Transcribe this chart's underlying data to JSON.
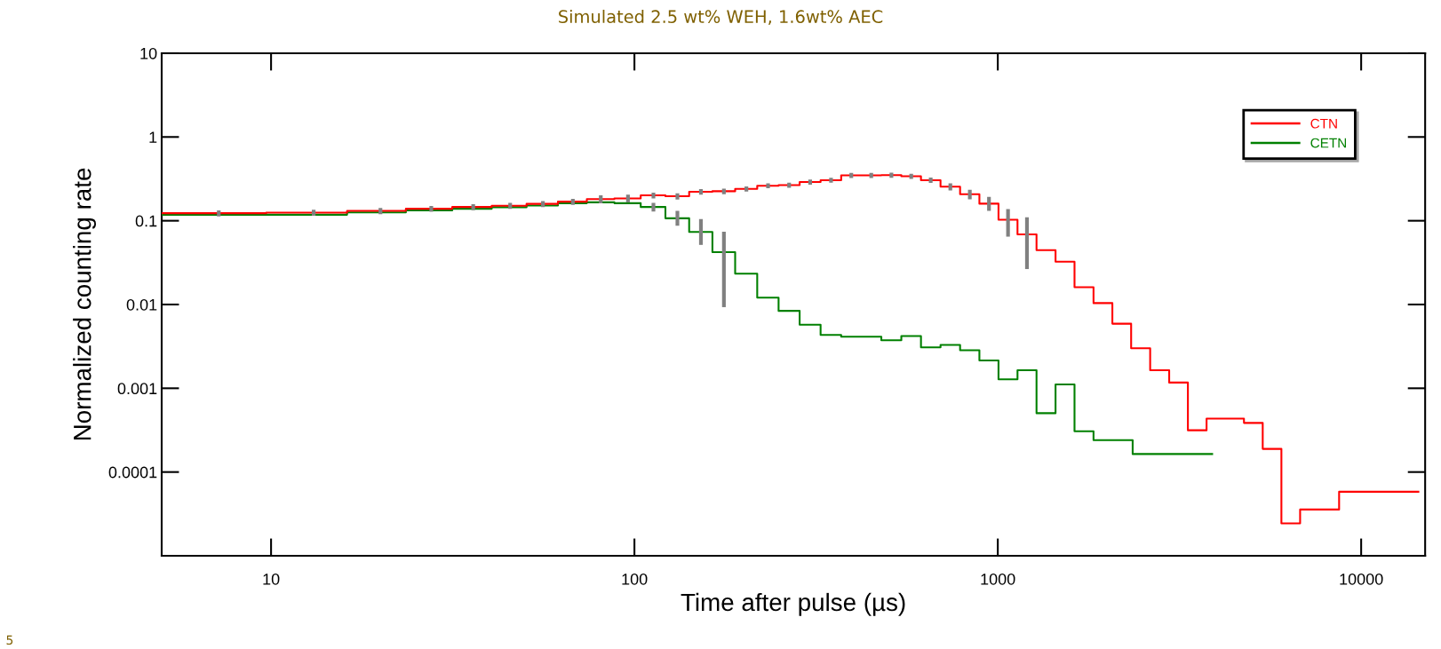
{
  "chart_data": {
    "type": "step",
    "title": "Simulated 2.5 wt% WEH, 1.6wt% AEC",
    "xlabel": "Time after pulse (µs)",
    "ylabel": "Normalized counting rate",
    "log": "xy",
    "xlim": [
      5,
      15000
    ],
    "ylim": [
      1e-05,
      10
    ],
    "xticks": [
      10,
      100,
      1000,
      10000
    ],
    "yticks": [
      0.0001,
      0.001,
      0.01,
      0.1,
      1,
      10
    ],
    "grid": false,
    "legend": "top right",
    "series": [
      {
        "name": "CTN",
        "color": "#ff0000",
        "x": [
          5,
          7.18,
          13.1,
          20.0,
          27.6,
          36.0,
          45.5,
          56.0,
          67.7,
          80.8,
          96.0,
          112.8,
          131.3,
          152.4,
          176.3,
          203.3,
          233.2,
          266.5,
          304.5,
          347.6,
          395.2,
          448.5,
          509.6,
          577.8,
          653.7,
          740.3,
          837.6,
          945.6,
          1067,
          1203,
          1358,
          1531,
          1727,
          1948,
          2193,
          2471,
          2791,
          3145,
          3538,
          3984,
          4484,
          5050,
          5687,
          6399,
          7209,
          10489,
          14370
        ],
        "values": [
          0.123,
          0.123,
          0.125,
          0.131,
          0.139,
          0.146,
          0.151,
          0.159,
          0.169,
          0.181,
          0.185,
          0.201,
          0.196,
          0.222,
          0.225,
          0.24,
          0.262,
          0.266,
          0.29,
          0.305,
          0.348,
          0.348,
          0.35,
          0.34,
          0.305,
          0.255,
          0.207,
          0.16,
          0.103,
          0.0688,
          0.0445,
          0.0325,
          0.0161,
          0.0104,
          0.0059,
          0.003,
          0.00164,
          0.00117,
          0.000315,
          0.000435,
          0.000435,
          0.000386,
          0.000189,
          2.44e-05,
          3.57e-05,
          5.82e-05,
          5.82e-05
        ],
        "errors": [
          null,
          0.01,
          0.01,
          0.011,
          0.011,
          0.012,
          0.012,
          0.013,
          0.014,
          0.02,
          0.02,
          0.016,
          0.017,
          0.017,
          0.017,
          0.017,
          0.018,
          0.019,
          0.02,
          0.021,
          0.024,
          0.024,
          0.024,
          0.024,
          0.022,
          0.025,
          0.027,
          [
            0.131,
            0.193
          ],
          [
            0.0646,
            0.138
          ],
          [
            0.0265,
            0.11
          ],
          null,
          null,
          null,
          null,
          null,
          null,
          null,
          null,
          null,
          null,
          null,
          null,
          null,
          null,
          null,
          null,
          null
        ]
      },
      {
        "name": "CETN",
        "color": "#008000",
        "x": [
          5,
          7.18,
          13.1,
          20.0,
          27.6,
          36.0,
          45.5,
          56.0,
          67.7,
          80.8,
          96.0,
          112.8,
          131.3,
          152.4,
          176.3,
          203.3,
          233.2,
          266.5,
          304.5,
          347.6,
          395.2,
          448.5,
          509.6,
          577.8,
          653.7,
          740.3,
          837.6,
          945.6,
          1067,
          1203,
          1358,
          1531,
          1727,
          1948,
          2836,
          3890
        ],
        "values": [
          0.118,
          0.118,
          0.118,
          0.126,
          0.133,
          0.139,
          0.145,
          0.152,
          0.162,
          0.166,
          0.162,
          0.146,
          0.107,
          0.0735,
          0.0422,
          0.0233,
          0.0121,
          0.0084,
          0.00574,
          0.00434,
          0.00413,
          0.00413,
          0.00375,
          0.0042,
          0.00308,
          0.00329,
          0.00284,
          0.00215,
          0.00128,
          0.00164,
          0.000504,
          0.00111,
          0.000307,
          0.00024,
          0.000164,
          0.000164
        ],
        "errors": [
          null,
          null,
          null,
          null,
          null,
          null,
          null,
          null,
          null,
          null,
          null,
          0.017,
          [
            0.087,
            0.131
          ],
          [
            0.0515,
            0.105
          ],
          [
            0.0093,
            0.074
          ],
          null,
          null,
          null,
          null,
          null,
          null,
          null,
          null,
          null,
          null,
          null,
          null,
          null,
          null,
          null,
          null,
          null,
          null,
          null,
          null,
          null
        ]
      }
    ],
    "annotations": [
      "5"
    ]
  }
}
